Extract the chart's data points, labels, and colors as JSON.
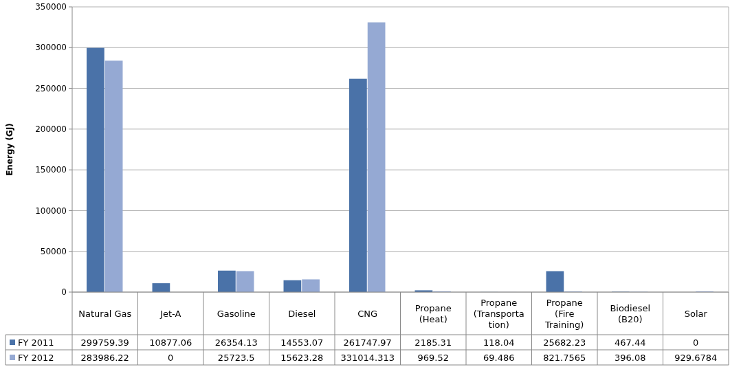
{
  "chart_data": {
    "type": "bar",
    "ylabel": "Energy (GJ)",
    "categories": [
      "Natural Gas",
      "Jet-A",
      "Gasoline",
      "Diesel",
      "CNG",
      "Propane (Heat)",
      "Propane (Transportation)",
      "Propane (Fire Training)",
      "Biodiesel (B20)",
      "Solar"
    ],
    "series": [
      {
        "name": "FY 2011",
        "color": "#4a72a8",
        "values": [
          299759.39,
          10877.06,
          26354.13,
          14553.07,
          261747.97,
          2185.31,
          118.04,
          25682.23,
          467.44,
          0
        ]
      },
      {
        "name": "FY 2012",
        "color": "#95a9d3",
        "values": [
          283986.22,
          0,
          25723.5,
          15623.28,
          331014.313,
          969.52,
          69.486,
          821.7565,
          396.08,
          929.6784
        ]
      }
    ],
    "ylim": [
      0,
      350000
    ],
    "yticks": [
      0,
      50000,
      100000,
      150000,
      200000,
      250000,
      300000,
      350000
    ],
    "grid": "y",
    "legend": "bottom",
    "data_labels": true
  }
}
